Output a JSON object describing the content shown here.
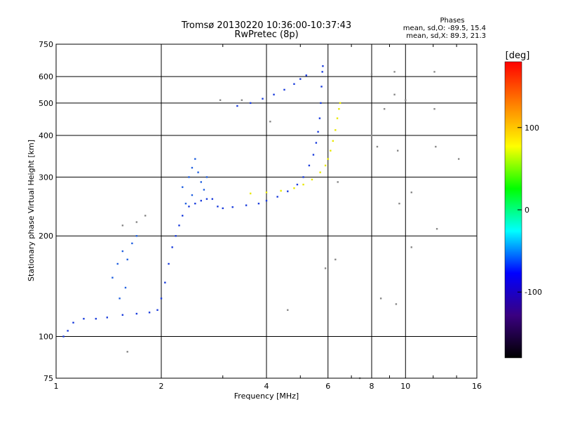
{
  "chart_data": {
    "type": "scatter",
    "title": "Tromsø 20130220 10:36:00-10:37:43",
    "subtitle": "RwPretec (8p)",
    "stats": {
      "heading": "Phases",
      "line_o": "mean, sd,O: -89.5, 15.4",
      "line_x": "mean, sd,X:  89.3, 21.3"
    },
    "xlabel": "Frequency [MHz]",
    "ylabel": "Stationary phase Virtual Height [km]",
    "x_scale": "log",
    "y_scale": "log",
    "xlim": [
      1,
      16
    ],
    "ylim": [
      75,
      750
    ],
    "x_ticks": [
      1,
      2,
      4,
      6,
      8,
      10,
      16
    ],
    "x_tick_labels": [
      "1",
      "2",
      "4",
      "6",
      "8",
      "10",
      "16"
    ],
    "y_ticks": [
      75,
      100,
      200,
      300,
      400,
      500,
      600,
      750
    ],
    "y_tick_labels": [
      "75",
      "100",
      "200",
      "300",
      "400",
      "500",
      "600",
      "750"
    ],
    "grid": true,
    "colorbar": {
      "label": "[deg]",
      "range": [
        -180,
        180
      ],
      "ticks": [
        100,
        0,
        -100
      ],
      "tick_labels": [
        "100",
        "0",
        "-100"
      ],
      "colors": [
        "#000000",
        "#3a0080",
        "#0000ff",
        "#00ffff",
        "#00ff00",
        "#ffff00",
        "#ff8000",
        "#ff0000"
      ]
    },
    "series": [
      {
        "mode": "O",
        "phase_deg": -90,
        "color": "#1a3cdc",
        "points": [
          [
            1.05,
            100
          ],
          [
            1.08,
            104
          ],
          [
            1.12,
            110
          ],
          [
            1.2,
            113
          ],
          [
            1.3,
            113
          ],
          [
            1.4,
            114
          ],
          [
            1.55,
            116
          ],
          [
            1.7,
            117
          ],
          [
            1.85,
            118
          ],
          [
            1.95,
            120
          ],
          [
            2.0,
            130
          ],
          [
            2.05,
            145
          ],
          [
            2.1,
            165
          ],
          [
            2.15,
            185
          ],
          [
            2.2,
            200
          ],
          [
            2.25,
            215
          ],
          [
            2.3,
            230
          ],
          [
            2.4,
            245
          ],
          [
            2.5,
            250
          ],
          [
            2.6,
            255
          ],
          [
            2.7,
            258
          ],
          [
            2.8,
            258
          ],
          [
            2.9,
            245
          ],
          [
            3.0,
            242
          ],
          [
            3.2,
            244
          ],
          [
            3.5,
            247
          ],
          [
            3.8,
            250
          ],
          [
            4.0,
            255
          ],
          [
            4.3,
            262
          ],
          [
            4.6,
            272
          ],
          [
            4.9,
            285
          ],
          [
            5.1,
            300
          ],
          [
            5.3,
            325
          ],
          [
            5.45,
            350
          ],
          [
            5.55,
            380
          ],
          [
            5.62,
            410
          ],
          [
            5.68,
            450
          ],
          [
            5.72,
            500
          ],
          [
            5.75,
            560
          ],
          [
            5.78,
            620
          ],
          [
            5.8,
            645
          ]
        ]
      },
      {
        "mode": "X",
        "phase_deg": 90,
        "color": "#e8e800",
        "points": [
          [
            3.6,
            268
          ],
          [
            4.0,
            270
          ],
          [
            4.4,
            273
          ],
          [
            4.8,
            278
          ],
          [
            5.1,
            285
          ],
          [
            5.4,
            295
          ],
          [
            5.7,
            310
          ],
          [
            5.9,
            325
          ],
          [
            6.0,
            340
          ],
          [
            6.1,
            360
          ],
          [
            6.2,
            385
          ],
          [
            6.3,
            415
          ],
          [
            6.38,
            450
          ],
          [
            6.45,
            480
          ],
          [
            6.5,
            500
          ]
        ]
      },
      {
        "mode": "F2-upper",
        "phase_deg": -90,
        "color": "#1a3cdc",
        "points": [
          [
            3.3,
            490
          ],
          [
            3.6,
            500
          ],
          [
            3.9,
            515
          ],
          [
            4.2,
            530
          ],
          [
            4.5,
            548
          ],
          [
            4.8,
            570
          ],
          [
            5.0,
            590
          ],
          [
            5.2,
            605
          ]
        ]
      },
      {
        "mode": "spread",
        "phase_deg": -100,
        "color": "#2060e0",
        "points": [
          [
            2.3,
            280
          ],
          [
            2.4,
            300
          ],
          [
            2.45,
            320
          ],
          [
            2.5,
            340
          ],
          [
            2.55,
            310
          ],
          [
            2.6,
            290
          ],
          [
            2.65,
            275
          ],
          [
            2.7,
            300
          ],
          [
            2.35,
            250
          ],
          [
            2.45,
            265
          ],
          [
            1.45,
            150
          ],
          [
            1.5,
            165
          ],
          [
            1.55,
            180
          ],
          [
            1.6,
            170
          ],
          [
            1.65,
            190
          ],
          [
            1.7,
            200
          ],
          [
            1.52,
            130
          ],
          [
            1.58,
            140
          ]
        ]
      },
      {
        "mode": "noise",
        "phase_deg": 0,
        "color": "#888888",
        "points": [
          [
            1.6,
            90
          ],
          [
            1.55,
            215
          ],
          [
            1.7,
            220
          ],
          [
            1.8,
            230
          ],
          [
            2.95,
            510
          ],
          [
            3.4,
            510
          ],
          [
            4.1,
            440
          ],
          [
            4.6,
            120
          ],
          [
            5.9,
            160
          ],
          [
            6.3,
            170
          ],
          [
            6.4,
            290
          ],
          [
            7.4,
            75
          ],
          [
            8.0,
            610
          ],
          [
            8.0,
            400
          ],
          [
            8.3,
            370
          ],
          [
            8.5,
            130
          ],
          [
            8.7,
            480
          ],
          [
            9.3,
            620
          ],
          [
            9.3,
            530
          ],
          [
            9.4,
            125
          ],
          [
            9.5,
            360
          ],
          [
            9.6,
            250
          ],
          [
            10.0,
            510
          ],
          [
            10.4,
            270
          ],
          [
            10.4,
            185
          ],
          [
            12.1,
            620
          ],
          [
            12.1,
            480
          ],
          [
            12.2,
            370
          ],
          [
            12.3,
            210
          ],
          [
            14.2,
            340
          ]
        ]
      }
    ]
  }
}
